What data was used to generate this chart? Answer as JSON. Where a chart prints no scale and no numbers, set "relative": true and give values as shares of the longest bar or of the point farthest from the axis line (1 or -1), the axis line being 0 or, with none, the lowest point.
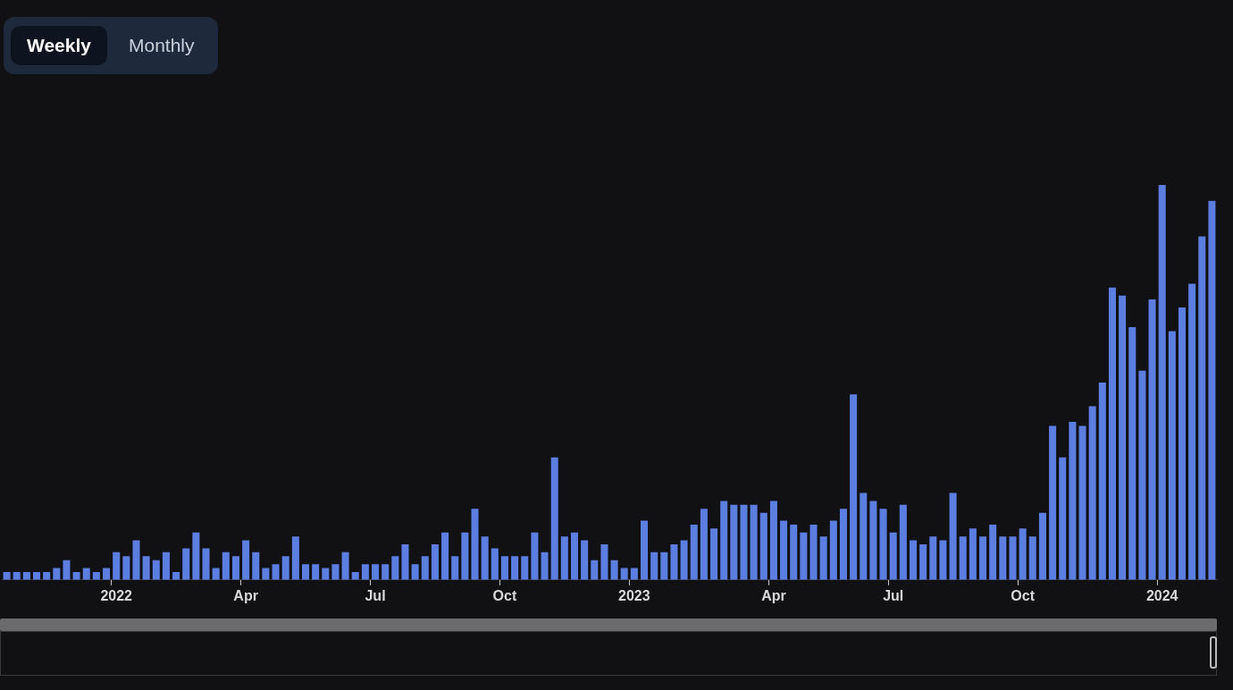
{
  "chart_data": {
    "type": "bar",
    "relative": true,
    "color": "#5b7ee0",
    "categories": [
      null,
      null,
      null,
      null,
      null,
      null,
      null,
      null,
      null,
      null,
      null,
      "2022",
      null,
      null,
      null,
      null,
      null,
      null,
      null,
      null,
      null,
      null,
      null,
      null,
      "Apr",
      null,
      null,
      null,
      null,
      null,
      null,
      null,
      null,
      null,
      null,
      null,
      null,
      "Jul",
      null,
      null,
      null,
      null,
      null,
      null,
      null,
      null,
      null,
      null,
      null,
      null,
      "Oct",
      null,
      null,
      null,
      null,
      null,
      null,
      null,
      null,
      null,
      null,
      null,
      null,
      "2023",
      null,
      null,
      null,
      null,
      null,
      null,
      null,
      null,
      null,
      null,
      null,
      null,
      null,
      "Apr",
      null,
      null,
      null,
      null,
      null,
      null,
      null,
      null,
      null,
      null,
      null,
      "Jul",
      null,
      null,
      null,
      null,
      null,
      null,
      null,
      null,
      null,
      null,
      null,
      null,
      "Oct",
      null,
      null,
      null,
      null,
      null,
      null,
      null,
      null,
      null,
      null,
      null,
      null,
      null,
      "2024",
      null,
      null,
      null,
      null,
      null
    ],
    "values": [
      0.02,
      0.02,
      0.02,
      0.02,
      0.02,
      0.03,
      0.05,
      0.02,
      0.03,
      0.02,
      0.03,
      0.07,
      0.06,
      0.1,
      0.06,
      0.05,
      0.07,
      0.02,
      0.08,
      0.12,
      0.08,
      0.03,
      0.07,
      0.06,
      0.1,
      0.07,
      0.03,
      0.04,
      0.06,
      0.11,
      0.04,
      0.04,
      0.03,
      0.04,
      0.07,
      0.02,
      0.04,
      0.04,
      0.04,
      0.06,
      0.09,
      0.04,
      0.06,
      0.09,
      0.12,
      0.06,
      0.12,
      0.18,
      0.11,
      0.08,
      0.06,
      0.06,
      0.06,
      0.12,
      0.07,
      0.31,
      0.11,
      0.12,
      0.1,
      0.05,
      0.09,
      0.05,
      0.03,
      0.03,
      0.15,
      0.07,
      0.07,
      0.09,
      0.1,
      0.14,
      0.18,
      0.13,
      0.2,
      0.19,
      0.19,
      0.19,
      0.17,
      0.2,
      0.15,
      0.14,
      0.12,
      0.14,
      0.11,
      0.15,
      0.18,
      0.47,
      0.22,
      0.2,
      0.18,
      0.12,
      0.19,
      0.1,
      0.09,
      0.11,
      0.1,
      0.22,
      0.11,
      0.13,
      0.11,
      0.14,
      0.11,
      0.11,
      0.13,
      0.11,
      0.17,
      0.39,
      0.31,
      0.4,
      0.39,
      0.44,
      0.5,
      0.74,
      0.72,
      0.64,
      0.53,
      0.71,
      1,
      0.63,
      0.69,
      0.75,
      0.87,
      0.96
    ],
    "annotations": [
      "Weekly",
      "Monthly"
    ]
  }
}
